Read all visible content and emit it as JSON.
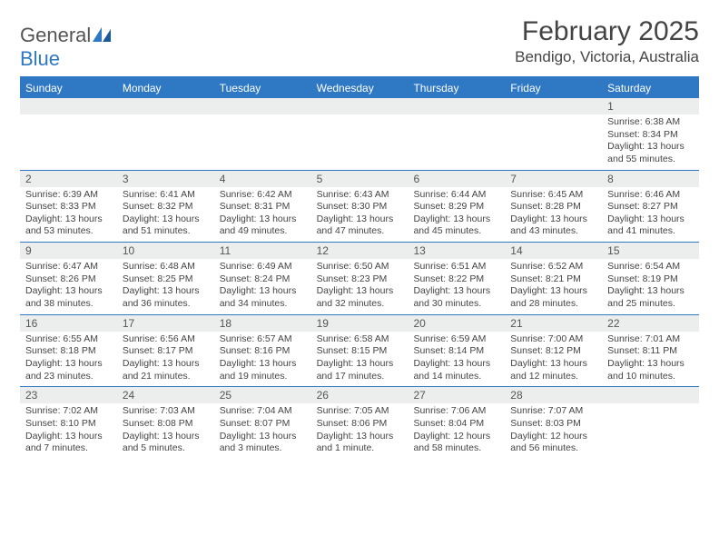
{
  "logo": {
    "word1": "General",
    "word2": "Blue"
  },
  "title": "February 2025",
  "location": "Bendigo, Victoria, Australia",
  "style": {
    "accent": "#2f78c4",
    "daynum_bg": "#eceded",
    "text": "#444444",
    "page_bg": "#ffffff"
  },
  "day_names": [
    "Sunday",
    "Monday",
    "Tuesday",
    "Wednesday",
    "Thursday",
    "Friday",
    "Saturday"
  ],
  "weeks": [
    [
      null,
      null,
      null,
      null,
      null,
      null,
      {
        "n": "1",
        "sunrise": "Sunrise: 6:38 AM",
        "sunset": "Sunset: 8:34 PM",
        "day1": "Daylight: 13 hours",
        "day2": "and 55 minutes."
      }
    ],
    [
      {
        "n": "2",
        "sunrise": "Sunrise: 6:39 AM",
        "sunset": "Sunset: 8:33 PM",
        "day1": "Daylight: 13 hours",
        "day2": "and 53 minutes."
      },
      {
        "n": "3",
        "sunrise": "Sunrise: 6:41 AM",
        "sunset": "Sunset: 8:32 PM",
        "day1": "Daylight: 13 hours",
        "day2": "and 51 minutes."
      },
      {
        "n": "4",
        "sunrise": "Sunrise: 6:42 AM",
        "sunset": "Sunset: 8:31 PM",
        "day1": "Daylight: 13 hours",
        "day2": "and 49 minutes."
      },
      {
        "n": "5",
        "sunrise": "Sunrise: 6:43 AM",
        "sunset": "Sunset: 8:30 PM",
        "day1": "Daylight: 13 hours",
        "day2": "and 47 minutes."
      },
      {
        "n": "6",
        "sunrise": "Sunrise: 6:44 AM",
        "sunset": "Sunset: 8:29 PM",
        "day1": "Daylight: 13 hours",
        "day2": "and 45 minutes."
      },
      {
        "n": "7",
        "sunrise": "Sunrise: 6:45 AM",
        "sunset": "Sunset: 8:28 PM",
        "day1": "Daylight: 13 hours",
        "day2": "and 43 minutes."
      },
      {
        "n": "8",
        "sunrise": "Sunrise: 6:46 AM",
        "sunset": "Sunset: 8:27 PM",
        "day1": "Daylight: 13 hours",
        "day2": "and 41 minutes."
      }
    ],
    [
      {
        "n": "9",
        "sunrise": "Sunrise: 6:47 AM",
        "sunset": "Sunset: 8:26 PM",
        "day1": "Daylight: 13 hours",
        "day2": "and 38 minutes."
      },
      {
        "n": "10",
        "sunrise": "Sunrise: 6:48 AM",
        "sunset": "Sunset: 8:25 PM",
        "day1": "Daylight: 13 hours",
        "day2": "and 36 minutes."
      },
      {
        "n": "11",
        "sunrise": "Sunrise: 6:49 AM",
        "sunset": "Sunset: 8:24 PM",
        "day1": "Daylight: 13 hours",
        "day2": "and 34 minutes."
      },
      {
        "n": "12",
        "sunrise": "Sunrise: 6:50 AM",
        "sunset": "Sunset: 8:23 PM",
        "day1": "Daylight: 13 hours",
        "day2": "and 32 minutes."
      },
      {
        "n": "13",
        "sunrise": "Sunrise: 6:51 AM",
        "sunset": "Sunset: 8:22 PM",
        "day1": "Daylight: 13 hours",
        "day2": "and 30 minutes."
      },
      {
        "n": "14",
        "sunrise": "Sunrise: 6:52 AM",
        "sunset": "Sunset: 8:21 PM",
        "day1": "Daylight: 13 hours",
        "day2": "and 28 minutes."
      },
      {
        "n": "15",
        "sunrise": "Sunrise: 6:54 AM",
        "sunset": "Sunset: 8:19 PM",
        "day1": "Daylight: 13 hours",
        "day2": "and 25 minutes."
      }
    ],
    [
      {
        "n": "16",
        "sunrise": "Sunrise: 6:55 AM",
        "sunset": "Sunset: 8:18 PM",
        "day1": "Daylight: 13 hours",
        "day2": "and 23 minutes."
      },
      {
        "n": "17",
        "sunrise": "Sunrise: 6:56 AM",
        "sunset": "Sunset: 8:17 PM",
        "day1": "Daylight: 13 hours",
        "day2": "and 21 minutes."
      },
      {
        "n": "18",
        "sunrise": "Sunrise: 6:57 AM",
        "sunset": "Sunset: 8:16 PM",
        "day1": "Daylight: 13 hours",
        "day2": "and 19 minutes."
      },
      {
        "n": "19",
        "sunrise": "Sunrise: 6:58 AM",
        "sunset": "Sunset: 8:15 PM",
        "day1": "Daylight: 13 hours",
        "day2": "and 17 minutes."
      },
      {
        "n": "20",
        "sunrise": "Sunrise: 6:59 AM",
        "sunset": "Sunset: 8:14 PM",
        "day1": "Daylight: 13 hours",
        "day2": "and 14 minutes."
      },
      {
        "n": "21",
        "sunrise": "Sunrise: 7:00 AM",
        "sunset": "Sunset: 8:12 PM",
        "day1": "Daylight: 13 hours",
        "day2": "and 12 minutes."
      },
      {
        "n": "22",
        "sunrise": "Sunrise: 7:01 AM",
        "sunset": "Sunset: 8:11 PM",
        "day1": "Daylight: 13 hours",
        "day2": "and 10 minutes."
      }
    ],
    [
      {
        "n": "23",
        "sunrise": "Sunrise: 7:02 AM",
        "sunset": "Sunset: 8:10 PM",
        "day1": "Daylight: 13 hours",
        "day2": "and 7 minutes."
      },
      {
        "n": "24",
        "sunrise": "Sunrise: 7:03 AM",
        "sunset": "Sunset: 8:08 PM",
        "day1": "Daylight: 13 hours",
        "day2": "and 5 minutes."
      },
      {
        "n": "25",
        "sunrise": "Sunrise: 7:04 AM",
        "sunset": "Sunset: 8:07 PM",
        "day1": "Daylight: 13 hours",
        "day2": "and 3 minutes."
      },
      {
        "n": "26",
        "sunrise": "Sunrise: 7:05 AM",
        "sunset": "Sunset: 8:06 PM",
        "day1": "Daylight: 13 hours",
        "day2": "and 1 minute."
      },
      {
        "n": "27",
        "sunrise": "Sunrise: 7:06 AM",
        "sunset": "Sunset: 8:04 PM",
        "day1": "Daylight: 12 hours",
        "day2": "and 58 minutes."
      },
      {
        "n": "28",
        "sunrise": "Sunrise: 7:07 AM",
        "sunset": "Sunset: 8:03 PM",
        "day1": "Daylight: 12 hours",
        "day2": "and 56 minutes."
      },
      null
    ]
  ]
}
